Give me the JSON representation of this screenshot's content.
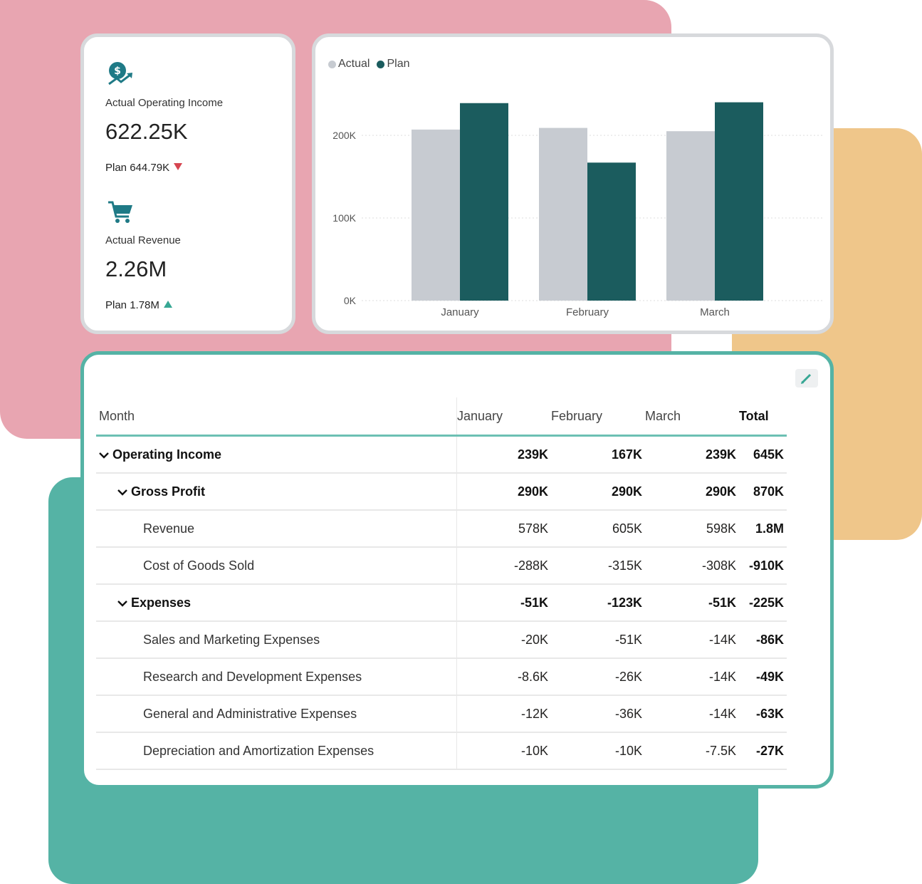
{
  "colors": {
    "actual": "#c7cbd1",
    "plan": "#1b5c5e",
    "down": "#d64550",
    "up": "#37a794",
    "accent": "#55b3a5"
  },
  "kpis": [
    {
      "icon": "money-growth-icon",
      "label": "Actual Operating Income",
      "value": "622.25K",
      "plan": "Plan 644.79K",
      "trend": "down"
    },
    {
      "icon": "shopping-cart-icon",
      "label": "Actual Revenue",
      "value": "2.26M",
      "plan": "Plan 1.78M",
      "trend": "up"
    }
  ],
  "chart_data": {
    "type": "bar",
    "categories": [
      "January",
      "February",
      "March"
    ],
    "series": [
      {
        "name": "Actual",
        "values": [
          207,
          209,
          205
        ]
      },
      {
        "name": "Plan",
        "values": [
          239,
          167,
          240
        ]
      }
    ],
    "yticks": [
      "0K",
      "100K",
      "200K"
    ],
    "ylim": [
      0,
      250
    ],
    "legend": "top-left",
    "grid": true
  },
  "table": {
    "headers": [
      "Month",
      "January",
      "February",
      "March",
      "Total"
    ],
    "rows": [
      {
        "label": "Operating Income",
        "level": 0,
        "expanded": true,
        "bold": true,
        "values": [
          "239K",
          "167K",
          "239K",
          "645K"
        ]
      },
      {
        "label": "Gross Profit",
        "level": 1,
        "expanded": true,
        "bold": true,
        "values": [
          "290K",
          "290K",
          "290K",
          "870K"
        ]
      },
      {
        "label": "Revenue",
        "level": 2,
        "bold": false,
        "values": [
          "578K",
          "605K",
          "598K",
          "1.8M"
        ]
      },
      {
        "label": "Cost of Goods Sold",
        "level": 2,
        "bold": false,
        "values": [
          "-288K",
          "-315K",
          "-308K",
          "-910K"
        ]
      },
      {
        "label": "Expenses",
        "level": 1,
        "expanded": true,
        "bold": true,
        "values": [
          "-51K",
          "-123K",
          "-51K",
          "-225K"
        ]
      },
      {
        "label": "Sales and Marketing Expenses",
        "level": 2,
        "bold": false,
        "values": [
          "-20K",
          "-51K",
          "-14K",
          "-86K"
        ]
      },
      {
        "label": "Research and Development Expenses",
        "level": 2,
        "bold": false,
        "values": [
          "-8.6K",
          "-26K",
          "-14K",
          "-49K"
        ]
      },
      {
        "label": "General and Administrative Expenses",
        "level": 2,
        "bold": false,
        "values": [
          "-12K",
          "-36K",
          "-14K",
          "-63K"
        ]
      },
      {
        "label": "Depreciation and Amortization Expenses",
        "level": 2,
        "bold": false,
        "values": [
          "-10K",
          "-10K",
          "-7.5K",
          "-27K"
        ]
      }
    ]
  }
}
